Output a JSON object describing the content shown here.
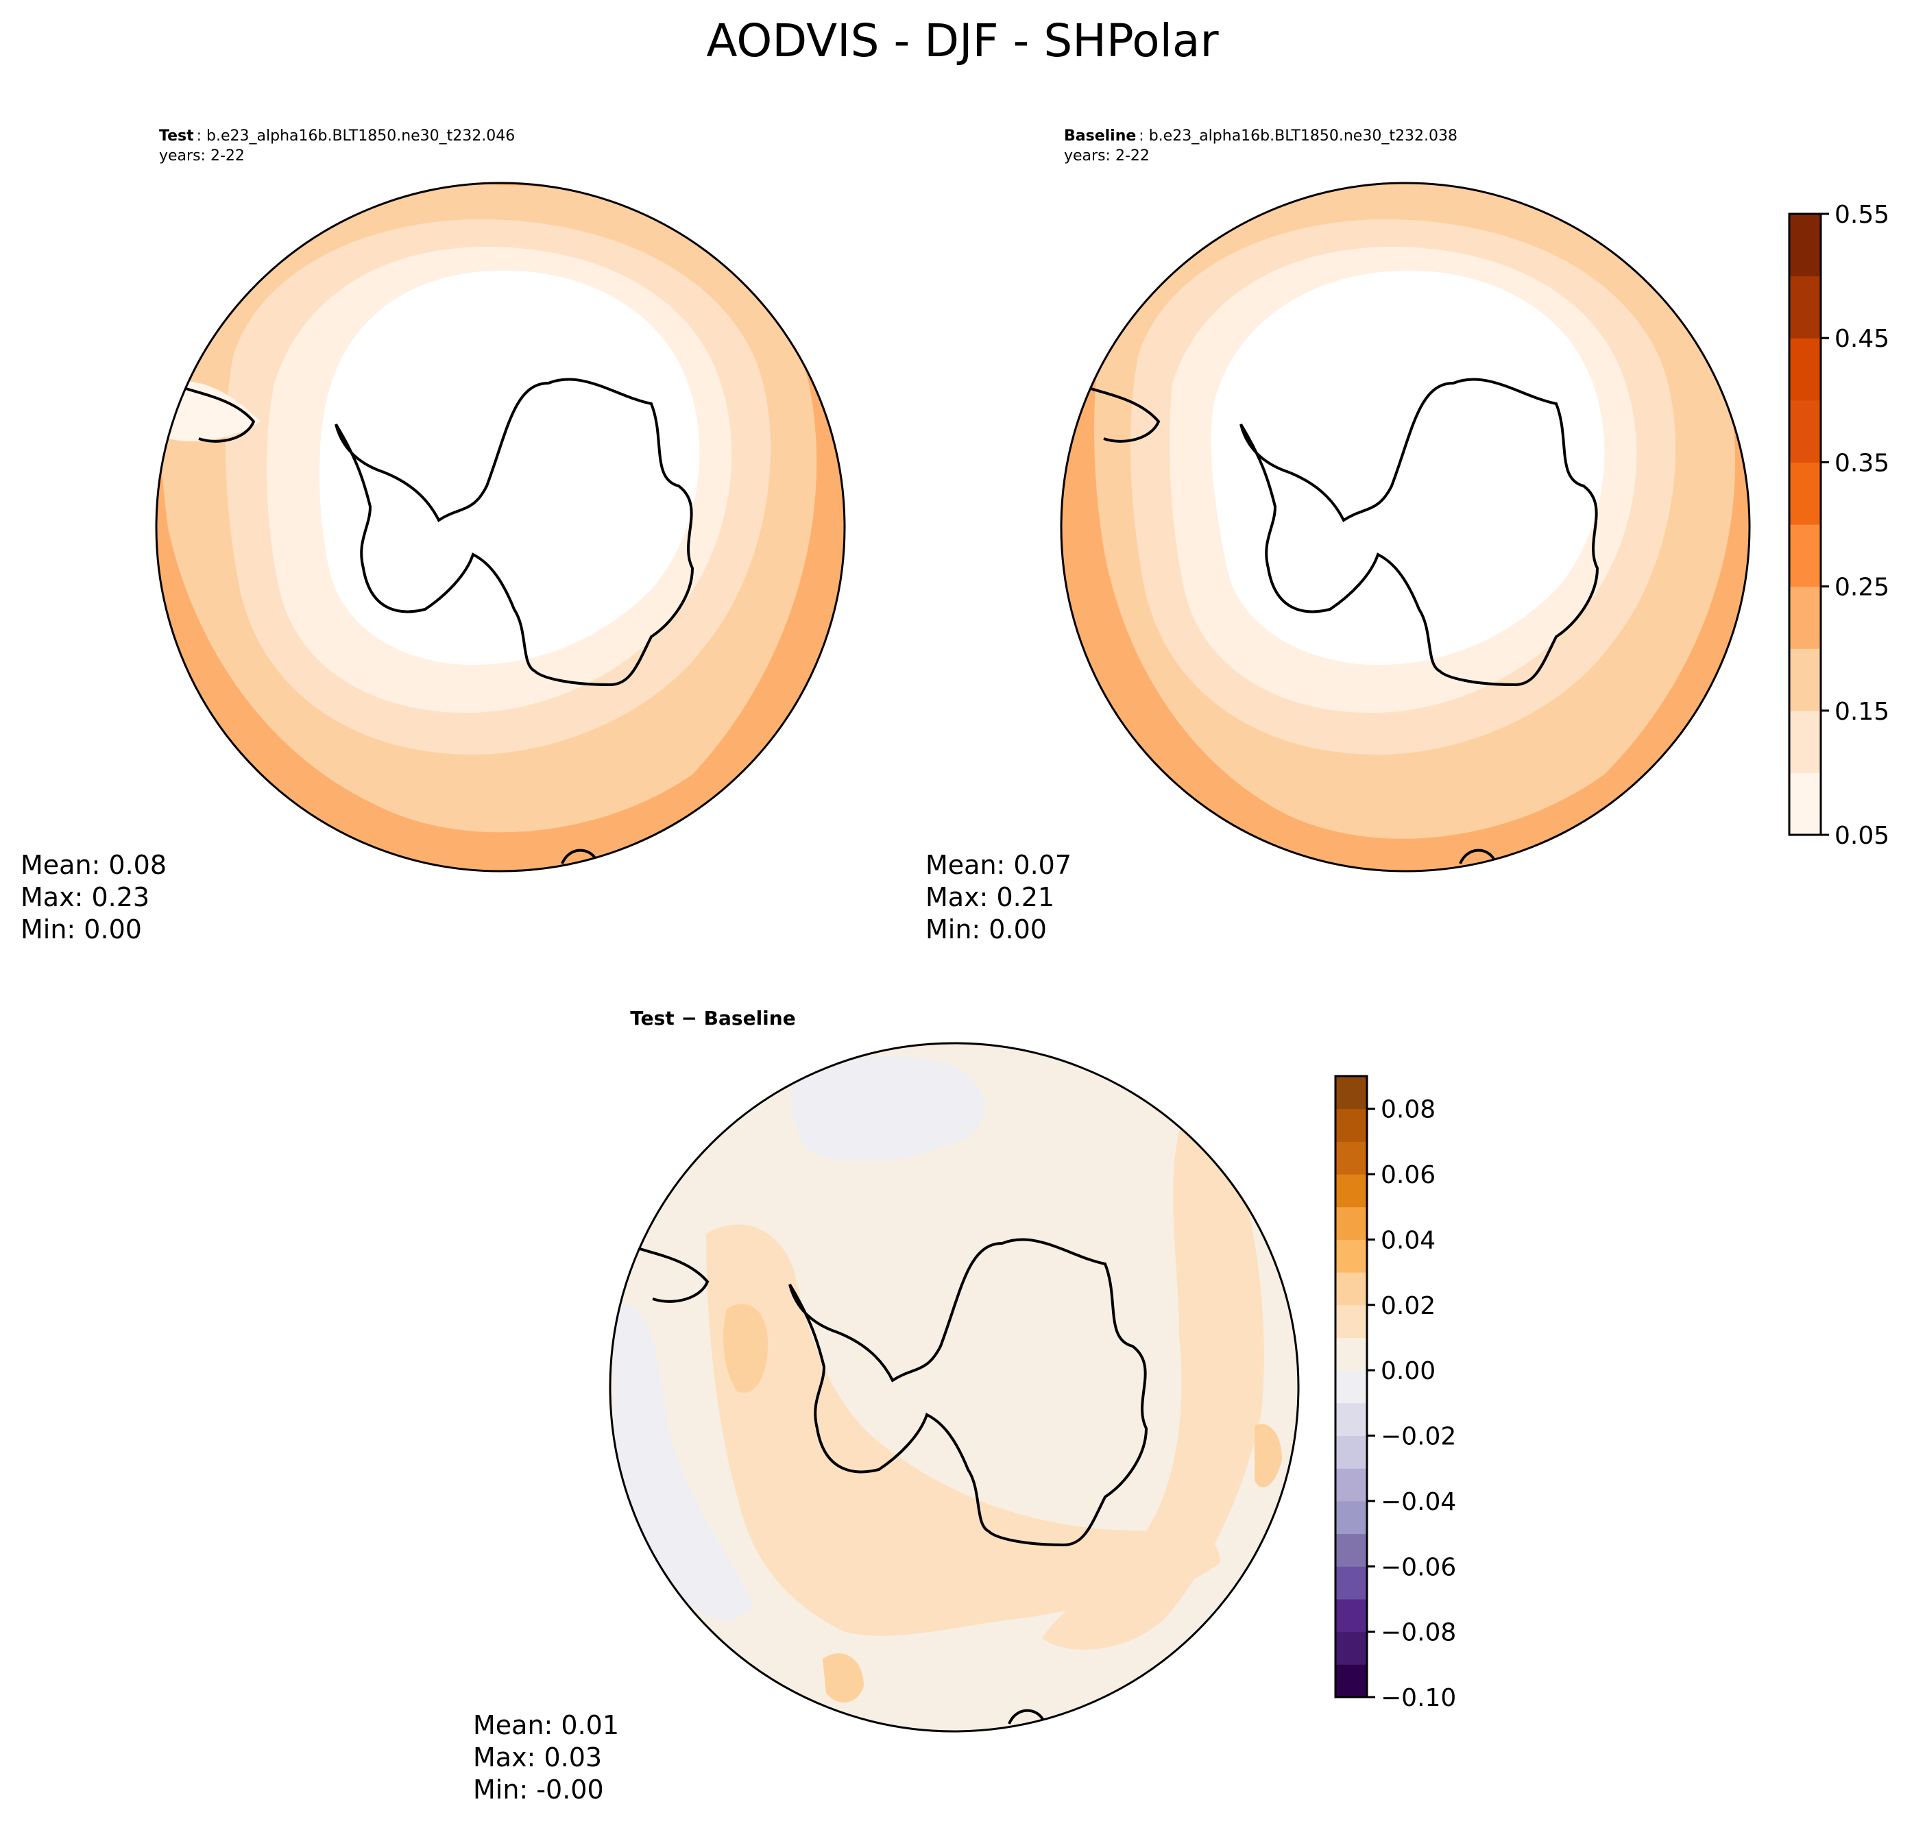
{
  "figure": {
    "title": "AODVIS - DJF - SHPolar"
  },
  "chart_data": [
    {
      "type": "heatmap",
      "projection": "south-polar-stereographic",
      "panel": "test",
      "title_key": "Test",
      "case_name": "b.e23_alpha16b.BLT1850.ne30_t232.046",
      "years_label": "years: 2-22",
      "stats": {
        "mean": "Mean:  0.08",
        "max": "Max:  0.23",
        "min": "Min:  0.00"
      },
      "levels": [
        0.05,
        0.1,
        0.15,
        0.2,
        0.25,
        0.3,
        0.35,
        0.4,
        0.45,
        0.5,
        0.55
      ],
      "field_description": "Near zero over Antarctica and the polar ring, increasing equatorward to about 0.2-0.25 at the outer edge, highest along the south Atlantic/Indian margin.",
      "ring_levels": [
        {
          "value": 0.225,
          "color": "#fdb06d"
        },
        {
          "value": 0.175,
          "color": "#fdd0a2"
        },
        {
          "value": 0.125,
          "color": "#fee1c4"
        },
        {
          "value": 0.075,
          "color": "#fff0e1"
        },
        {
          "value": 0.0,
          "color": "#ffffff"
        }
      ]
    },
    {
      "type": "heatmap",
      "projection": "south-polar-stereographic",
      "panel": "baseline",
      "title_key": "Baseline",
      "case_name": "b.e23_alpha16b.BLT1850.ne30_t232.038",
      "years_label": "years: 2-22",
      "stats": {
        "mean": "Mean:  0.07",
        "max": "Max:  0.21",
        "min": "Min:  0.00"
      },
      "levels": [
        0.05,
        0.1,
        0.15,
        0.2,
        0.25,
        0.3,
        0.35,
        0.4,
        0.45,
        0.5,
        0.55
      ],
      "colorbar": {
        "ticks": [
          "0.05",
          "0.15",
          "0.25",
          "0.35",
          "0.45",
          "0.55"
        ],
        "colors": [
          "#fff5eb",
          "#fee6ce",
          "#fdd0a2",
          "#fdb06d",
          "#fd8d3c",
          "#f16913",
          "#e0520b",
          "#d94801",
          "#a63603",
          "#7f2704"
        ]
      },
      "ring_levels": [
        {
          "value": 0.225,
          "color": "#fdb06d"
        },
        {
          "value": 0.175,
          "color": "#fdd0a2"
        },
        {
          "value": 0.125,
          "color": "#fee1c4"
        },
        {
          "value": 0.075,
          "color": "#fff0e1"
        },
        {
          "value": 0.0,
          "color": "#ffffff"
        }
      ]
    },
    {
      "type": "heatmap",
      "projection": "south-polar-stereographic",
      "panel": "difference",
      "title": "Test − Baseline",
      "stats": {
        "mean": "Mean:  0.01",
        "max": "Max:  0.03",
        "min": "Min: -0.00"
      },
      "levels": [
        -0.1,
        -0.09,
        -0.08,
        -0.07,
        -0.06,
        -0.05,
        -0.04,
        -0.03,
        -0.02,
        -0.01,
        0.0,
        0.01,
        0.02,
        0.03,
        0.04,
        0.05,
        0.06,
        0.07,
        0.08,
        0.09
      ],
      "colorbar": {
        "ticks": [
          "−0.10",
          "−0.08",
          "−0.06",
          "−0.04",
          "−0.02",
          "0.00",
          "0.02",
          "0.04",
          "0.06",
          "0.08"
        ],
        "colors": [
          "#2d004b",
          "#431a6e",
          "#542788",
          "#6a51a3",
          "#8073ac",
          "#9e9ac8",
          "#b2abd2",
          "#cbc9e2",
          "#dcdcea",
          "#eeeef3",
          "#f7efe3",
          "#fde0c0",
          "#fdd19e",
          "#fdb863",
          "#f5a242",
          "#e08214",
          "#c8690f",
          "#b35806",
          "#8e470b"
        ]
      },
      "field_description": "Mostly 0.00-0.01 over the continent and most of the domain, 0.01-0.03 in a band over the Atlantic/Indian sectors, slightly negative (-0.01-0) patches off South America and in the Pacific sector."
    }
  ]
}
